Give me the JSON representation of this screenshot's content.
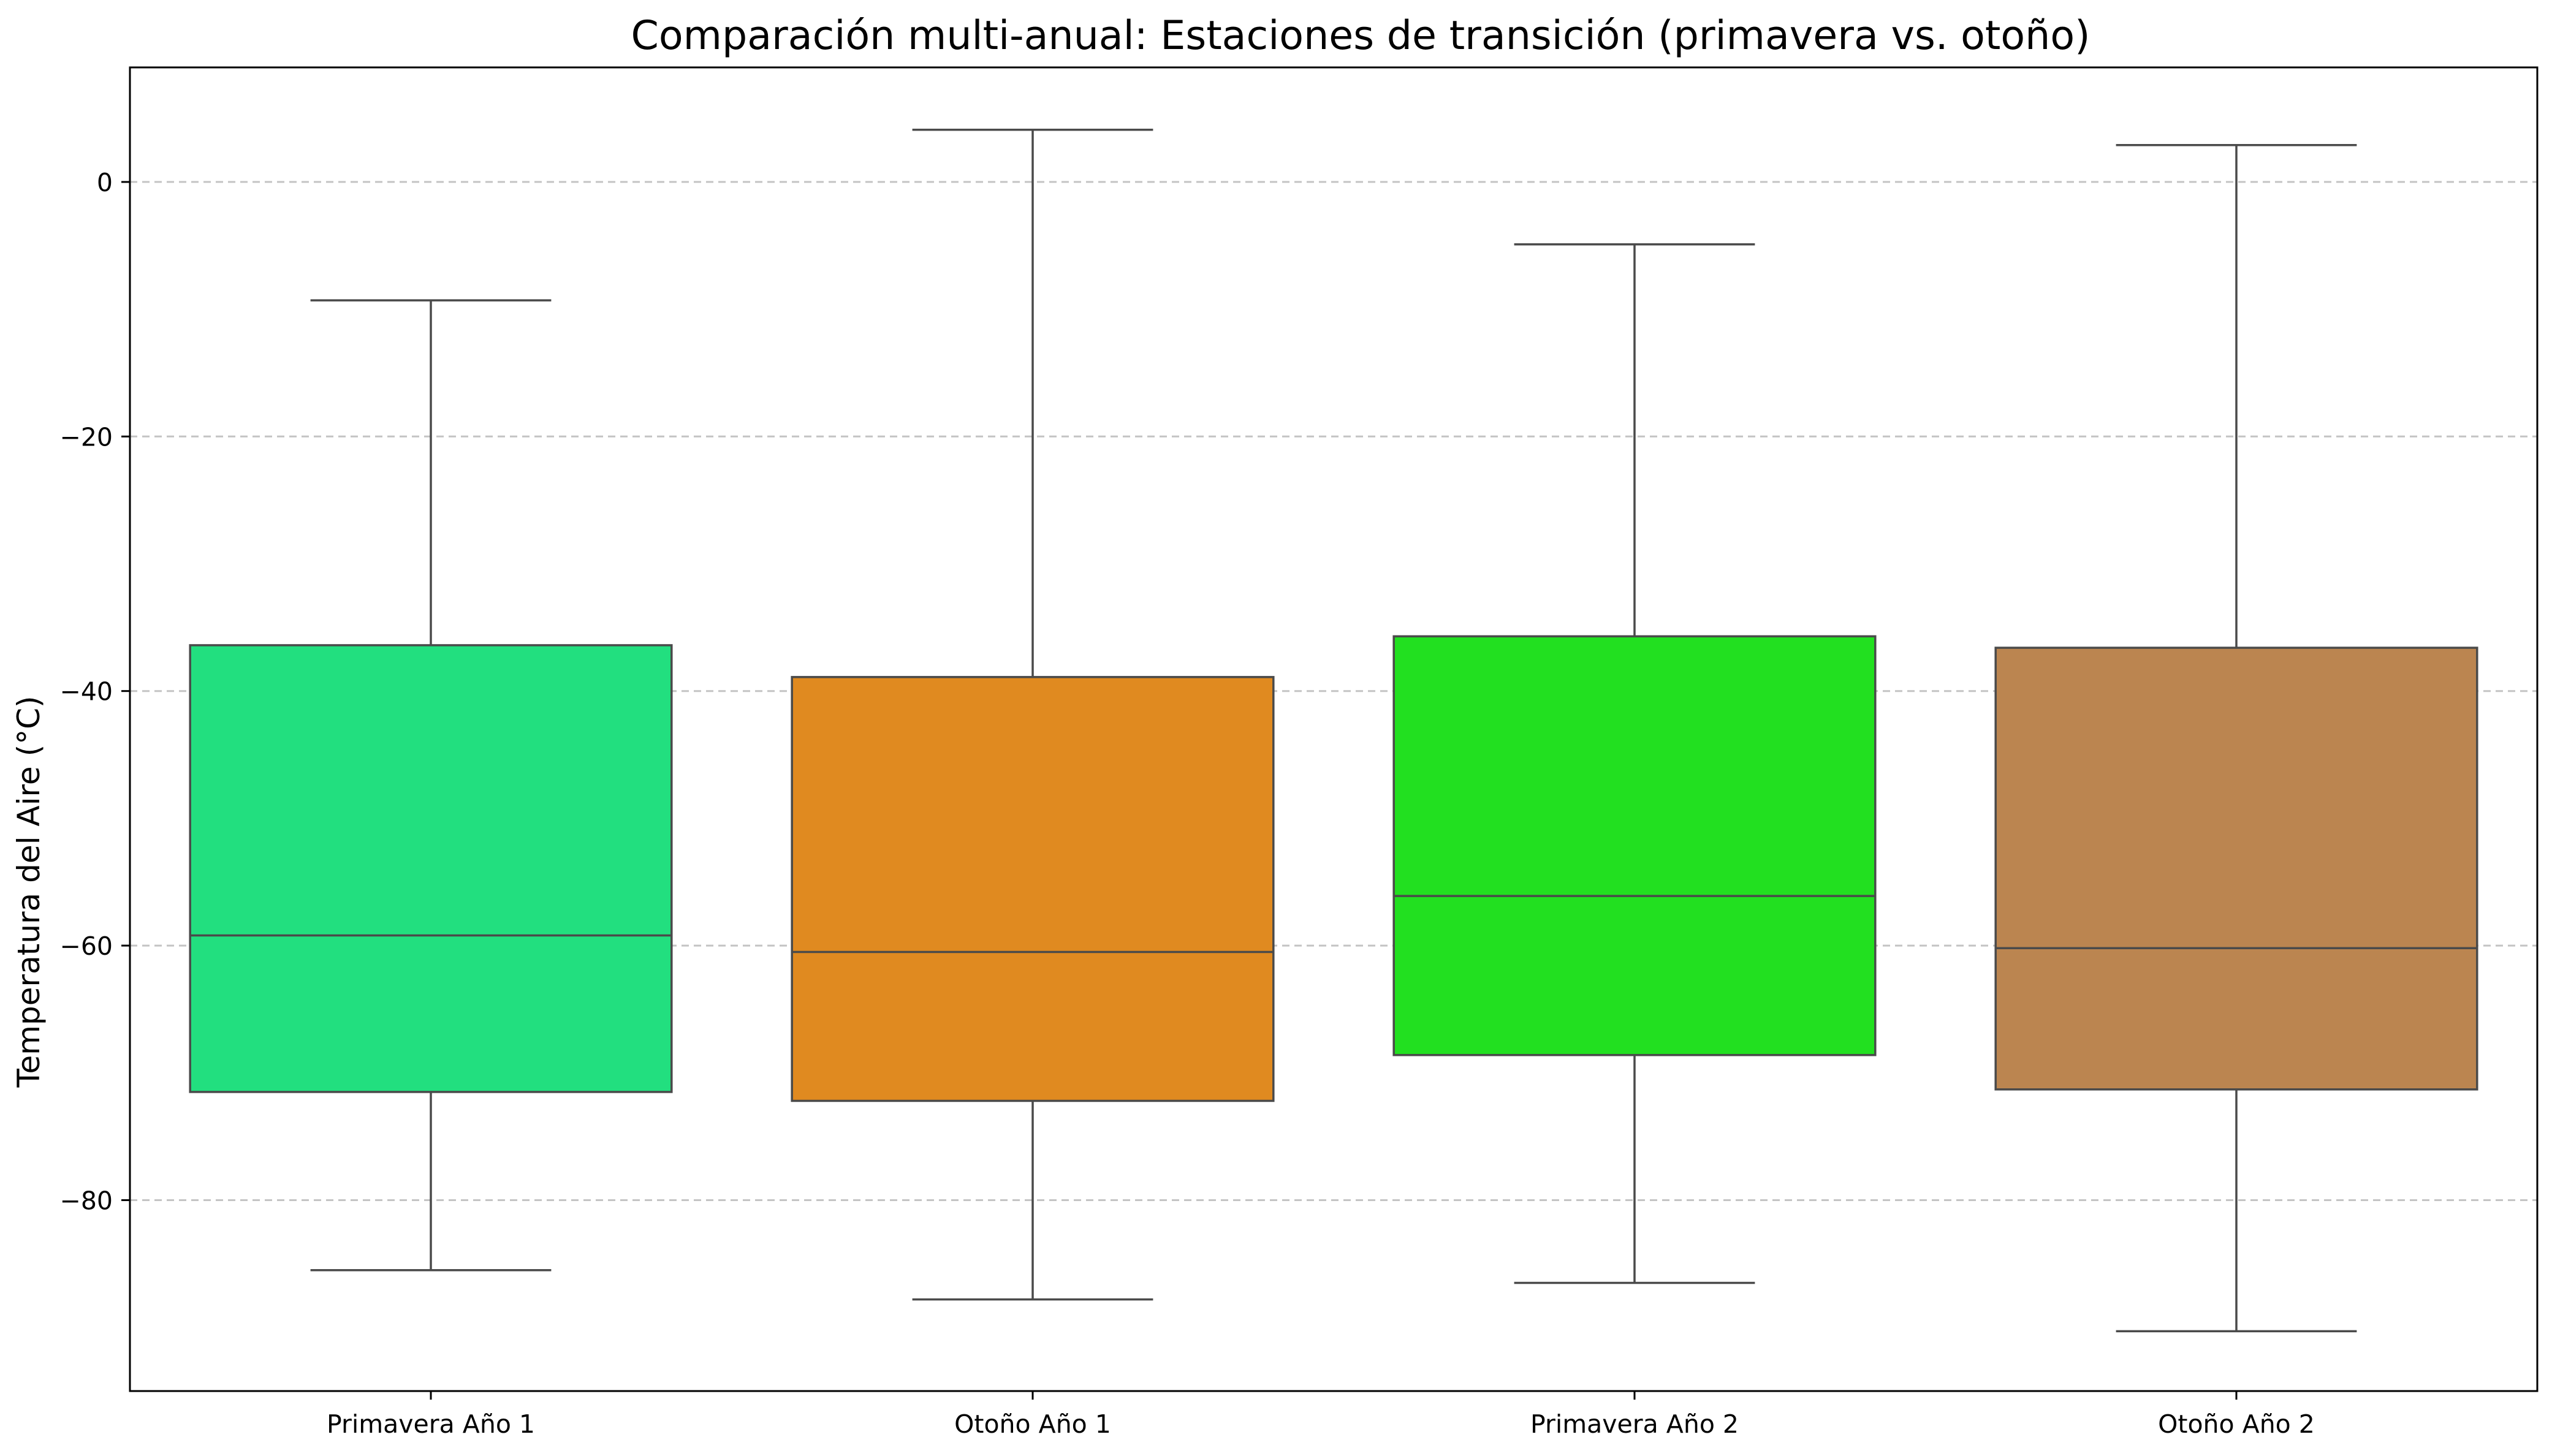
{
  "chart_data": {
    "type": "box",
    "title": "Comparación multi-anual: Estaciones de transición (primavera vs. otoño)",
    "xlabel": "",
    "ylabel": "Temperatura del Aire (°C)",
    "ylim": [
      -95,
      9
    ],
    "yticks": [
      0,
      -20,
      -40,
      -60,
      -80
    ],
    "ytick_labels": [
      "0",
      "−20",
      "−40",
      "−60",
      "−80"
    ],
    "grid": "y-dashed",
    "categories": [
      "Primavera Año 1",
      "Otoño Año 1",
      "Primavera Año 2",
      "Otoño Año 2"
    ],
    "series": [
      {
        "category": "Primavera Año 1",
        "whisker_low": -85.5,
        "q1": -71.5,
        "median": -59.2,
        "q3": -36.4,
        "whisker_high": -9.3,
        "color": "#22df7f"
      },
      {
        "category": "Otoño Año 1",
        "whisker_low": -87.8,
        "q1": -72.2,
        "median": -60.5,
        "q3": -38.9,
        "whisker_high": 4.1,
        "color": "#e08a20"
      },
      {
        "category": "Primavera Año 2",
        "whisker_low": -86.5,
        "q1": -68.6,
        "median": -56.1,
        "q3": -35.7,
        "whisker_high": -4.9,
        "color": "#22e020"
      },
      {
        "category": "Otoño Año 2",
        "whisker_low": -90.3,
        "q1": -71.3,
        "median": -60.2,
        "q3": -36.6,
        "whisker_high": 2.9,
        "color": "#bb8550"
      }
    ]
  }
}
